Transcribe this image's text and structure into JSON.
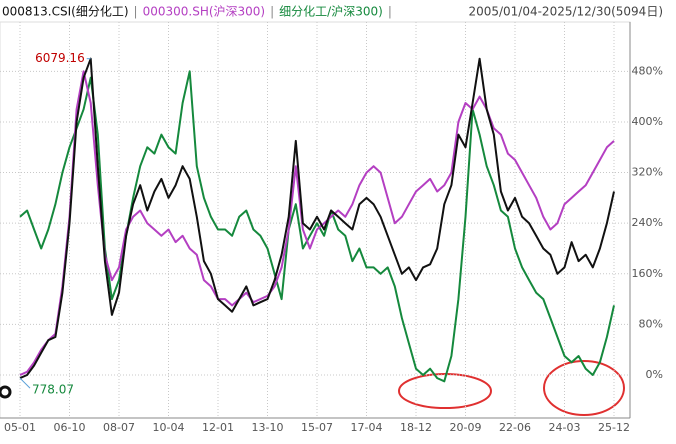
{
  "chart_data": {
    "type": "line",
    "range_label": "2005/01/04-2025/12/30(5094日)",
    "separator": "|",
    "max_label": "6079.16",
    "min_label": "778.07",
    "categories": [
      "05-01",
      null,
      null,
      null,
      null,
      null,
      null,
      "06-10",
      null,
      null,
      null,
      null,
      null,
      null,
      "08-07",
      null,
      null,
      null,
      null,
      null,
      null,
      "10-04",
      null,
      null,
      null,
      null,
      null,
      null,
      "12-01",
      null,
      null,
      null,
      null,
      null,
      null,
      "13-10",
      null,
      null,
      null,
      null,
      null,
      null,
      "15-07",
      null,
      null,
      null,
      null,
      null,
      null,
      "17-04",
      null,
      null,
      null,
      null,
      null,
      null,
      "18-12",
      null,
      null,
      null,
      null,
      null,
      null,
      "20-09",
      null,
      null,
      null,
      null,
      null,
      null,
      "22-06",
      null,
      null,
      null,
      null,
      null,
      null,
      "24-03",
      null,
      null,
      null,
      null,
      null,
      null,
      "25-12"
    ],
    "series": [
      {
        "name": "000813.CSI(细分化工)",
        "color": "#111111",
        "values": [
          -5,
          0,
          15,
          35,
          55,
          60,
          130,
          240,
          400,
          470,
          500,
          330,
          180,
          95,
          130,
          220,
          270,
          300,
          260,
          290,
          310,
          280,
          300,
          330,
          310,
          250,
          180,
          160,
          120,
          110,
          100,
          120,
          140,
          110,
          115,
          120,
          150,
          190,
          250,
          370,
          240,
          230,
          250,
          230,
          260,
          250,
          240,
          230,
          270,
          280,
          270,
          250,
          220,
          190,
          160,
          170,
          150,
          170,
          175,
          200,
          270,
          300,
          380,
          360,
          430,
          500,
          420,
          380,
          290,
          260,
          280,
          250,
          240,
          220,
          200,
          190,
          160,
          170,
          210,
          180,
          190,
          170,
          200,
          240,
          290
        ]
      },
      {
        "name": "000300.SH(沪深300)",
        "color": "#b43fc2",
        "values": [
          0,
          5,
          20,
          40,
          55,
          65,
          140,
          250,
          420,
          480,
          430,
          300,
          190,
          150,
          170,
          230,
          250,
          260,
          240,
          230,
          220,
          230,
          210,
          220,
          200,
          190,
          150,
          140,
          120,
          120,
          110,
          120,
          130,
          115,
          120,
          125,
          140,
          170,
          230,
          330,
          230,
          200,
          230,
          240,
          250,
          260,
          250,
          270,
          300,
          320,
          330,
          320,
          280,
          240,
          250,
          270,
          290,
          300,
          310,
          290,
          300,
          320,
          400,
          430,
          420,
          440,
          420,
          390,
          380,
          350,
          340,
          320,
          300,
          280,
          250,
          230,
          240,
          270,
          280,
          290,
          300,
          320,
          340,
          360,
          370
        ]
      },
      {
        "name": "细分化工/沪深300)",
        "color": "#15893d",
        "values": [
          250,
          260,
          230,
          200,
          230,
          270,
          320,
          360,
          390,
          420,
          470,
          380,
          200,
          120,
          150,
          220,
          280,
          330,
          360,
          350,
          380,
          360,
          350,
          430,
          480,
          330,
          280,
          250,
          230,
          230,
          220,
          250,
          260,
          230,
          220,
          200,
          160,
          120,
          230,
          270,
          200,
          220,
          240,
          220,
          260,
          230,
          220,
          180,
          200,
          170,
          170,
          160,
          170,
          140,
          90,
          50,
          10,
          0,
          10,
          -5,
          -10,
          30,
          120,
          250,
          420,
          380,
          330,
          300,
          260,
          250,
          200,
          170,
          150,
          130,
          120,
          90,
          60,
          30,
          20,
          30,
          10,
          0,
          20,
          60,
          110
        ]
      }
    ],
    "ylim": [
      -68,
      558
    ],
    "yticks": [
      {
        "value": 0,
        "label": "0%"
      },
      {
        "value": 80,
        "label": "80%"
      },
      {
        "value": 160,
        "label": "160%"
      },
      {
        "value": 240,
        "label": "240%"
      },
      {
        "value": 320,
        "label": "320%"
      },
      {
        "value": 400,
        "label": "400%"
      },
      {
        "value": 480,
        "label": "480%"
      }
    ],
    "grid": true
  }
}
